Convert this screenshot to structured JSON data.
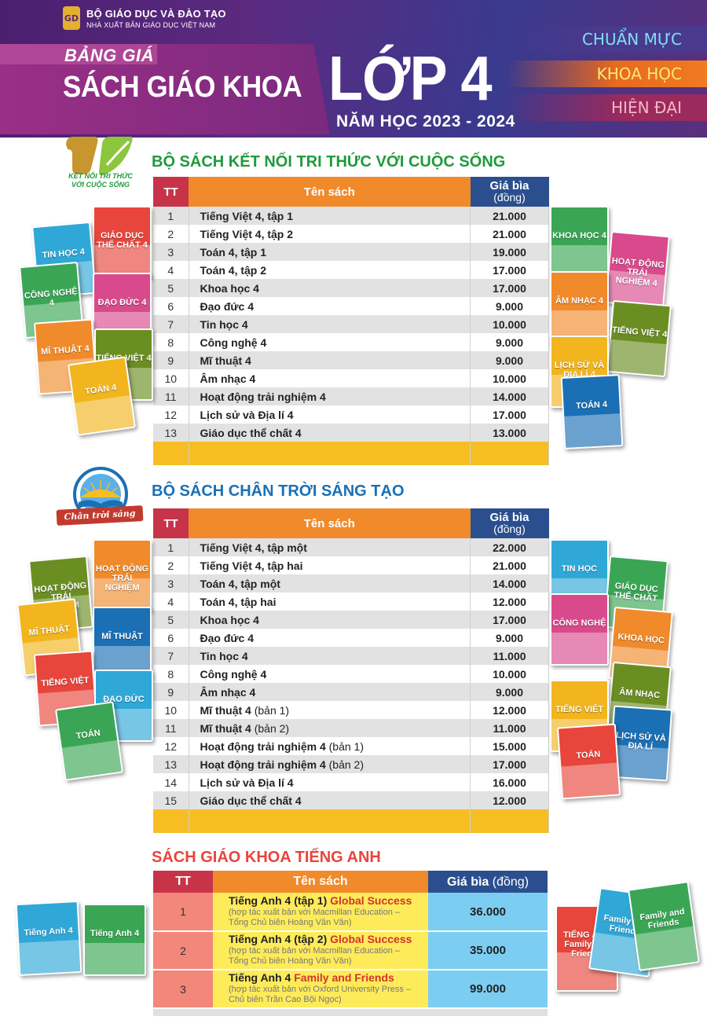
{
  "header": {
    "publisher_line1": "BỘ GIÁO DỤC VÀ ĐÀO TẠO",
    "publisher_line2": "NHÀ XUẤT BẢN GIÁO DỤC VIỆT NAM",
    "logo_text": "GD",
    "title_small": "BẢNG GIÁ",
    "title_main": "SÁCH GIÁO KHOA",
    "title_grade": "LỚP 4",
    "school_year": "NĂM HỌC 2023 - 2024",
    "tags": [
      "CHUẨN MỰC",
      "KHOA HỌC",
      "HIỆN ĐẠI"
    ]
  },
  "colors": {
    "header_bg": "#4a1f6e",
    "tt_header": "#c7344a",
    "name_header": "#f08a2b",
    "price_header": "#2b4f8e",
    "footer_bar": "#f6be22",
    "kntt_green": "#1f9a3c",
    "ctst_blue": "#1b6fb5",
    "english_red": "#e8453c"
  },
  "sections": {
    "kntt": {
      "title": "BỘ SÁCH KẾT NỐI TRI THỨC VỚI CUỘC SỐNG",
      "logo_text": [
        "KẾT NỐI TRI THỨC",
        "VỚI CUỘC SỐNG"
      ],
      "columns": {
        "tt": "TT",
        "name": "Tên sách",
        "price": "Giá bìa",
        "price_unit": "(đồng)"
      },
      "rows": [
        {
          "tt": "1",
          "name": "Tiếng Việt 4, tập 1",
          "price": "21.000"
        },
        {
          "tt": "2",
          "name": "Tiếng Việt 4, tập 2",
          "price": "21.000"
        },
        {
          "tt": "3",
          "name": "Toán 4, tập 1",
          "price": "19.000"
        },
        {
          "tt": "4",
          "name": "Toán 4, tập 2",
          "price": "17.000"
        },
        {
          "tt": "5",
          "name": "Khoa học 4",
          "price": "17.000"
        },
        {
          "tt": "6",
          "name": "Đạo đức 4",
          "price": "9.000"
        },
        {
          "tt": "7",
          "name": "Tin học 4",
          "price": "10.000"
        },
        {
          "tt": "8",
          "name": "Công nghệ 4",
          "price": "9.000"
        },
        {
          "tt": "9",
          "name": "Mĩ thuật 4",
          "price": "9.000"
        },
        {
          "tt": "10",
          "name": "Âm nhạc 4",
          "price": "10.000"
        },
        {
          "tt": "11",
          "name": "Hoạt động trải nghiệm 4",
          "price": "14.000"
        },
        {
          "tt": "12",
          "name": "Lịch sử và Địa lí 4",
          "price": "17.000"
        },
        {
          "tt": "13",
          "name": "Giáo dục thể chất 4",
          "price": "13.000"
        }
      ],
      "covers_left": [
        "GIÁO DỤC THỂ CHẤT 4",
        "TIN HỌC 4",
        "CÔNG NGHỆ 4",
        "ĐẠO ĐỨC 4",
        "MĨ THUẬT 4",
        "TIẾNG VIỆT 4",
        "TOÁN 4"
      ],
      "covers_right": [
        "KHOA HỌC 4",
        "HOẠT ĐỘNG TRẢI NGHIỆM 4",
        "ÂM NHẠC 4",
        "TIẾNG VIỆT 4",
        "LỊCH SỬ VÀ ĐỊA LÍ 4",
        "TOÁN 4"
      ]
    },
    "ctst": {
      "title": "BỘ SÁCH CHÂN TRỜI SÁNG TẠO",
      "logo_text": "Chân trời sáng tạo",
      "columns": {
        "tt": "TT",
        "name": "Tên sách",
        "price": "Giá bìa",
        "price_unit": "(đồng)"
      },
      "rows": [
        {
          "tt": "1",
          "name": "Tiếng Việt 4, tập một",
          "note": "",
          "price": "22.000"
        },
        {
          "tt": "2",
          "name": "Tiếng Việt 4, tập hai",
          "note": "",
          "price": "21.000"
        },
        {
          "tt": "3",
          "name": "Toán 4, tập một",
          "note": "",
          "price": "14.000"
        },
        {
          "tt": "4",
          "name": "Toán 4, tập hai",
          "note": "",
          "price": "12.000"
        },
        {
          "tt": "5",
          "name": "Khoa học 4",
          "note": "",
          "price": "17.000"
        },
        {
          "tt": "6",
          "name": "Đạo đức 4",
          "note": "",
          "price": "9.000"
        },
        {
          "tt": "7",
          "name": "Tin học 4",
          "note": "",
          "price": "11.000"
        },
        {
          "tt": "8",
          "name": "Công nghệ 4",
          "note": "",
          "price": "10.000"
        },
        {
          "tt": "9",
          "name": "Âm nhạc 4",
          "note": "",
          "price": "9.000"
        },
        {
          "tt": "10",
          "name": "Mĩ thuật 4",
          "note": " (bản 1)",
          "price": "12.000"
        },
        {
          "tt": "11",
          "name": "Mĩ thuật 4",
          "note": " (bản 2)",
          "price": "11.000"
        },
        {
          "tt": "12",
          "name": "Hoạt động trải nghiệm 4",
          "note": " (bản 1)",
          "price": "15.000"
        },
        {
          "tt": "13",
          "name": "Hoạt động trải nghiệm 4",
          "note": "  (bản 2)",
          "price": "17.000"
        },
        {
          "tt": "14",
          "name": "Lịch sử và Địa lí 4",
          "note": "",
          "price": "16.000"
        },
        {
          "tt": "15",
          "name": "Giáo dục thể chất 4",
          "note": "",
          "price": "12.000"
        }
      ],
      "covers_left": [
        "HOẠT ĐỘNG TRẢI NGHIỆM",
        "HOẠT ĐỘNG TRẢI NGHIỆM",
        "MĨ THUẬT",
        "MĨ THUẬT",
        "TIẾNG VIỆT",
        "ĐẠO ĐỨC",
        "TOÁN"
      ],
      "covers_right": [
        "TIN HỌC",
        "GIÁO DỤC THỂ CHẤT",
        "CÔNG NGHỆ",
        "KHOA HỌC",
        "ÂM NHẠC",
        "TIẾNG VIỆT",
        "LỊCH SỬ VÀ ĐỊA LÍ",
        "TOÁN"
      ]
    },
    "english": {
      "title": "SÁCH GIÁO KHOA TIẾNG ANH",
      "columns": {
        "tt": "TT",
        "name": "Tên sách",
        "price": "Giá bìa",
        "price_unit": "(đồng)"
      },
      "rows": [
        {
          "tt": "1",
          "name": "Tiếng Anh 4 (tập 1) ",
          "highlight": "Global Success",
          "note1": "(hợp tác xuất bản với Macmillan Education –",
          "note2": "Tổng Chủ biên Hoàng Văn Vân)",
          "price": "36.000"
        },
        {
          "tt": "2",
          "name": "Tiếng Anh 4 (tập 2) ",
          "highlight": "Global Success",
          "note1": "(hợp tác xuất bản với Macmillan Education –",
          "note2": "Tổng Chủ biên Hoàng Văn Vân)",
          "price": "35.000"
        },
        {
          "tt": "3",
          "name": "Tiếng Anh 4 ",
          "highlight": "Family and Friends",
          "note1": "(hợp tác xuất bản với Oxford University Press –",
          "note2": "Chủ biên Trần Cao Bội Ngọc)",
          "price": "99.000"
        }
      ],
      "covers_left": [
        "Tiếng Anh 4",
        "Tiếng Anh 4"
      ],
      "covers_right": [
        "TIẾNG ANH Family and Friends",
        "Family and Friends",
        "Family and Friends"
      ]
    }
  }
}
